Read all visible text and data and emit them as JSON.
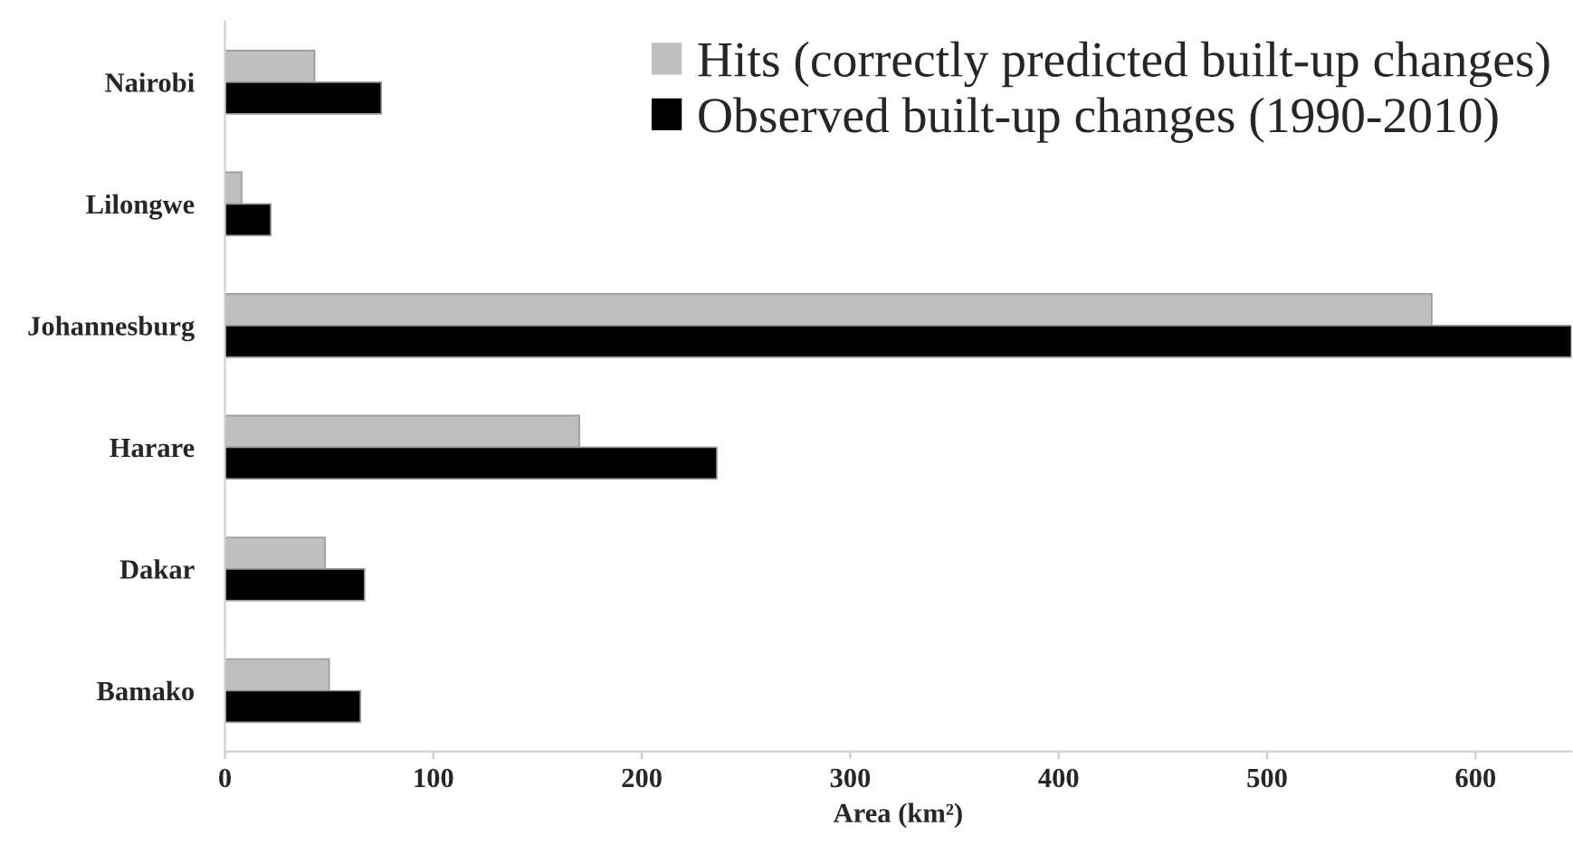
{
  "chart_data": {
    "type": "bar",
    "orientation": "horizontal",
    "xlabel": "Area (km²)",
    "categories": [
      "Nairobi",
      "Lilongwe",
      "Johannesburg",
      "Harare",
      "Dakar",
      "Bamako"
    ],
    "series": [
      {
        "name": "Hits (correctly predicted built-up changes)",
        "color": "#bfbfbf",
        "values": [
          43,
          8,
          579,
          170,
          48,
          50
        ]
      },
      {
        "name": "Observed built-up changes (1990-2010)",
        "color": "#000000",
        "values": [
          75,
          22,
          646,
          236,
          67,
          65
        ]
      }
    ],
    "xlim": [
      0,
      646
    ],
    "xticks": [
      0,
      100,
      200,
      300,
      400,
      500,
      600
    ],
    "grid": false,
    "legend": "top right"
  }
}
